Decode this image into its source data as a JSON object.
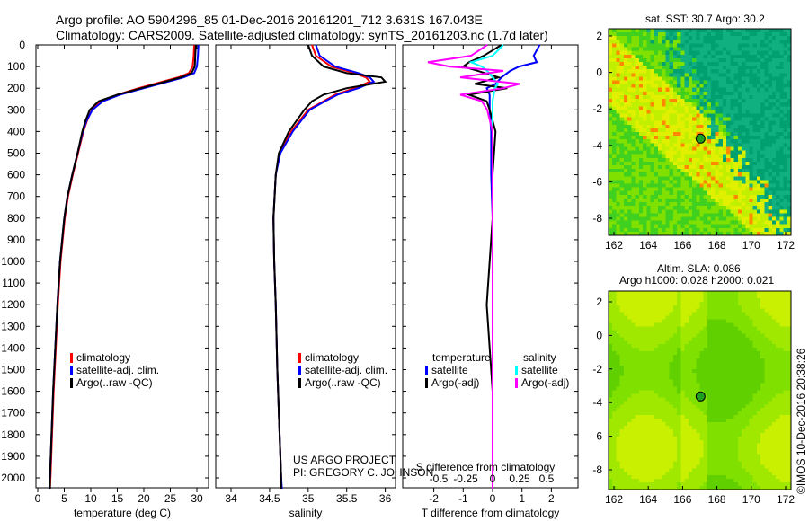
{
  "title_line1": "Argo profile: AO 5904296_85 01-Dec-2016 20161201_712 3.631S 167.043E",
  "title_line2": "Climatology: CARS2009. Satellite-adjusted climatology: synTS_20161203.nc (1.7d later)",
  "credit": "©IMOS 10-Dec-2016 20:38:26",
  "project_line1": "US ARGO PROJECT",
  "project_line2": "PI: GREGORY C. JOHNSON",
  "colors": {
    "climatology": "#ff0000",
    "satellite": "#0000ff",
    "argo": "#000000",
    "sal_satellite": "#00ffff",
    "sal_argo": "#ff00ff"
  },
  "chart_data": [
    {
      "type": "line",
      "name": "temperature",
      "xlabel": "temperature (deg C)",
      "xlim": [
        -1,
        32
      ],
      "ylim": [
        2050,
        0
      ],
      "xticks": [
        0,
        5,
        10,
        15,
        20,
        25,
        30
      ],
      "yticks": [
        0,
        100,
        200,
        300,
        400,
        500,
        600,
        700,
        800,
        900,
        1000,
        1100,
        1200,
        1300,
        1400,
        1500,
        1600,
        1700,
        1800,
        1900,
        2000
      ],
      "legend": [
        "climatology",
        "satellite-adj. clim.",
        "Argo(..raw -QC)"
      ],
      "depth": [
        0,
        50,
        100,
        130,
        150,
        180,
        200,
        230,
        260,
        300,
        350,
        400,
        500,
        600,
        700,
        800,
        900,
        1000,
        1200,
        1400,
        1600,
        1800,
        2000,
        2050
      ],
      "series": [
        {
          "name": "climatology",
          "values": [
            29.5,
            29.4,
            29.2,
            28.5,
            26.5,
            22,
            19,
            15,
            12,
            10.2,
            9.3,
            8.6,
            7.6,
            6.6,
            5.7,
            5.1,
            4.7,
            4.3,
            3.8,
            3.4,
            3.0,
            2.7,
            2.4,
            2.3
          ]
        },
        {
          "name": "satellite-adj. clim.",
          "values": [
            30.3,
            30.2,
            30,
            29.5,
            27.5,
            23,
            20,
            15.5,
            12.3,
            10.3,
            9.2,
            8.5,
            7.5,
            6.5,
            5.6,
            5.0,
            4.6,
            4.2,
            3.7,
            3.3,
            2.9,
            2.6,
            2.3,
            2.2
          ]
        },
        {
          "name": "Argo(..raw -QC)",
          "values": [
            29.8,
            29.7,
            29.6,
            29,
            27,
            22.5,
            19.5,
            15,
            11.5,
            9.8,
            9.0,
            8.4,
            7.5,
            6.5,
            5.6,
            5.0,
            4.6,
            4.2,
            3.7,
            3.3,
            2.9,
            2.6,
            2.3,
            2.3
          ]
        }
      ]
    },
    {
      "type": "line",
      "name": "salinity",
      "xlabel": "salinity",
      "xlim": [
        33.8,
        36.1
      ],
      "ylim": [
        2050,
        0
      ],
      "xticks": [
        34,
        34.5,
        35,
        35.5,
        36
      ],
      "legend": [
        "climatology",
        "satellite-adj. clim.",
        "Argo(..raw -QC)"
      ],
      "depth": [
        0,
        50,
        100,
        130,
        150,
        170,
        200,
        230,
        260,
        300,
        400,
        500,
        600,
        800,
        1000,
        1200,
        1500,
        1800,
        2000,
        2050
      ],
      "series": [
        {
          "name": "climatology",
          "values": [
            35.05,
            35.1,
            35.3,
            35.6,
            35.75,
            35.8,
            35.6,
            35.35,
            35.2,
            35.0,
            34.78,
            34.63,
            34.58,
            34.55,
            34.56,
            34.58,
            34.6,
            34.63,
            34.65,
            34.65
          ]
        },
        {
          "name": "satellite-adj. clim.",
          "values": [
            35.1,
            35.15,
            35.35,
            35.65,
            35.8,
            35.85,
            35.65,
            35.38,
            35.22,
            35.02,
            34.8,
            34.64,
            34.58,
            34.55,
            34.56,
            34.58,
            34.6,
            34.63,
            34.65,
            34.66
          ]
        },
        {
          "name": "Argo(..raw -QC)",
          "values": [
            35.0,
            35.05,
            35.2,
            35.5,
            35.95,
            36.0,
            35.5,
            35.2,
            35.05,
            34.95,
            34.75,
            34.62,
            34.58,
            34.55,
            34.56,
            34.58,
            34.6,
            34.63,
            34.65,
            34.65
          ]
        }
      ]
    },
    {
      "type": "line",
      "name": "difference",
      "xlabel": "T difference from climatology",
      "x2label": "S difference from climatology",
      "xlim": [
        -3,
        3
      ],
      "xticks": [
        -2,
        -1,
        0,
        1,
        2
      ],
      "x2ticks": [
        -0.5,
        -0.25,
        0,
        0.25,
        0.5
      ],
      "x2tick_labels": [
        "-0.5",
        "-0.25",
        "0",
        "0.25",
        "0.5"
      ],
      "legend_title_t": "temperature",
      "legend_title_s": "salinity",
      "legend": [
        "satellite",
        "Argo(-adj)",
        "satellite",
        "Argo(-adj)"
      ],
      "depth": [
        0,
        50,
        80,
        100,
        120,
        150,
        180,
        200,
        230,
        260,
        300,
        400,
        600,
        800,
        1000,
        1200,
        1400,
        1600,
        2000,
        2050
      ],
      "series": [
        {
          "name": "T satellite",
          "values": [
            1.6,
            1.4,
            1.5,
            0.9,
            0.6,
            0.3,
            0.1,
            -0.2,
            -0.1,
            -0.1,
            -0.1,
            -0.05,
            -0.05,
            0,
            0,
            0,
            0,
            0,
            0,
            0
          ]
        },
        {
          "name": "T Argo(-adj)",
          "values": [
            0.3,
            -0.3,
            -0.8,
            -1.0,
            -0.5,
            0.2,
            -0.6,
            0.5,
            -0.8,
            -0.2,
            -0.1,
            0.1,
            0,
            0,
            -0.1,
            -0.2,
            -0.1,
            0,
            0,
            0
          ]
        },
        {
          "name": "S satellite",
          "values": [
            0.1,
            0,
            -0.2,
            -0.1,
            -0.05,
            0,
            0.05,
            0.02,
            0.01,
            0,
            0,
            0,
            0,
            0,
            0,
            0,
            0,
            0,
            0,
            0
          ]
        },
        {
          "name": "S Argo(-adj)",
          "values": [
            -0.05,
            -0.2,
            -0.6,
            -0.4,
            0.1,
            -0.3,
            0.25,
            0.1,
            -0.3,
            -0.1,
            -0.05,
            0,
            0,
            0,
            0,
            0,
            0,
            0,
            0,
            0
          ]
        }
      ]
    },
    {
      "type": "heatmap",
      "name": "sst_map",
      "title": "sat. SST: 30.7 Argo: 30.2",
      "xticks": [
        162,
        164,
        166,
        168,
        170,
        172
      ],
      "yticks": [
        2,
        0,
        -2,
        -4,
        -6,
        -8
      ],
      "argo_position": [
        167.043,
        -3.631
      ]
    },
    {
      "type": "heatmap",
      "name": "sla_map",
      "title_line1": "Altim. SLA: 0.086",
      "title_line2": "Argo h1000: 0.028 h2000: 0.021",
      "xticks": [
        162,
        164,
        166,
        168,
        170,
        172
      ],
      "yticks": [
        2,
        0,
        -2,
        -4,
        -6,
        -8
      ],
      "argo_position": [
        167.043,
        -3.631
      ]
    }
  ]
}
